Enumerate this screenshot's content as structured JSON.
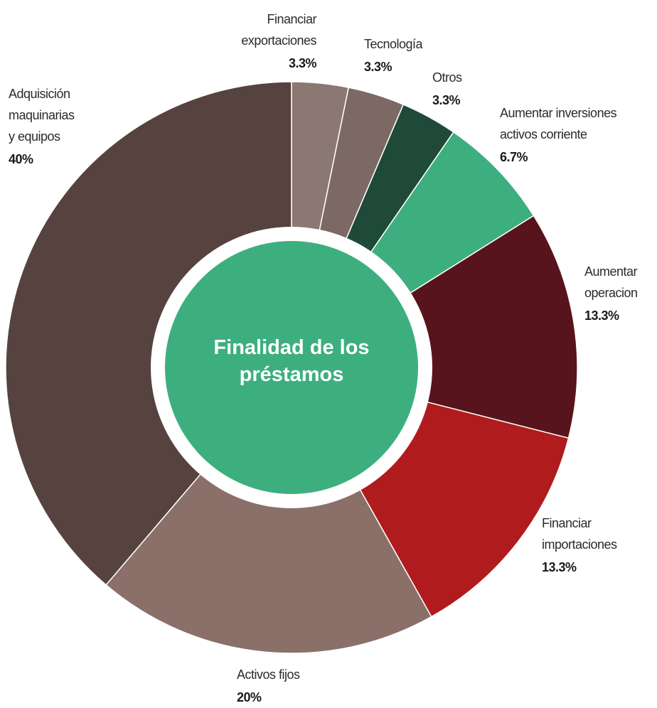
{
  "chart_data": {
    "type": "donut",
    "title": "Finalidad de los préstamos",
    "categories": [
      [
        "Financiar",
        "exportaciones"
      ],
      [
        "Tecnología"
      ],
      [
        "Otros"
      ],
      [
        "Aumentar inversiones",
        "activos corriente"
      ],
      [
        "Aumentar",
        "operacion"
      ],
      [
        "Financiar",
        "importaciones"
      ],
      [
        "Activos fijos"
      ],
      [
        "Adquisición",
        "maquinarias",
        "y equipos"
      ]
    ],
    "values": [
      3.3,
      3.3,
      3.3,
      6.7,
      13.3,
      13.3,
      20,
      40
    ],
    "value_labels": [
      "3.3%",
      "3.3%",
      "3.3%",
      "6.7%",
      "13.3%",
      "13.3%",
      "20%",
      "40%"
    ],
    "colors": [
      "#8b7873",
      "#7c6964",
      "#1f4a39",
      "#3daf7e",
      "#58141c",
      "#b01b1e",
      "#8a7069",
      "#56423e"
    ],
    "center_color": "#3daf7e"
  }
}
